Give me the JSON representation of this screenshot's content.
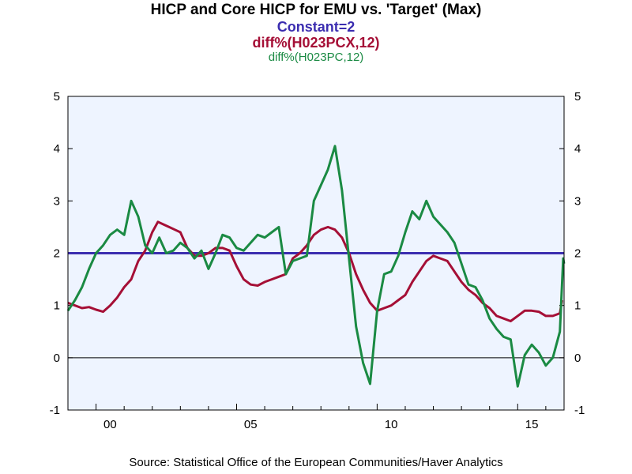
{
  "chart_data": {
    "type": "line",
    "title": "HICP and Core HICP for EMU vs. 'Target' (Max)",
    "xlabel": "",
    "ylabel": "",
    "xlim": [
      1999.0,
      2016.65
    ],
    "ylim": [
      -1,
      5
    ],
    "yticks": [
      -1,
      0,
      1,
      2,
      3,
      4,
      5
    ],
    "xticks": [
      {
        "value": 2000,
        "label": "00"
      },
      {
        "value": 2005,
        "label": "05"
      },
      {
        "value": 2010,
        "label": "10"
      },
      {
        "value": 2015,
        "label": "15"
      }
    ],
    "grid": false,
    "legend": "top-center",
    "series": [
      {
        "name": "Constant=2",
        "color": "#3b2db0",
        "points": [
          [
            1999.0,
            2
          ],
          [
            2016.65,
            2
          ]
        ]
      },
      {
        "name": "diff%(H023PCX,12)",
        "color": "#a50f36",
        "points": [
          [
            1999.0,
            1.05
          ],
          [
            1999.25,
            1.0
          ],
          [
            1999.5,
            0.95
          ],
          [
            1999.75,
            0.97
          ],
          [
            2000.0,
            0.92
          ],
          [
            2000.25,
            0.88
          ],
          [
            2000.5,
            1.0
          ],
          [
            2000.75,
            1.15
          ],
          [
            2001.0,
            1.35
          ],
          [
            2001.25,
            1.5
          ],
          [
            2001.5,
            1.85
          ],
          [
            2001.75,
            2.05
          ],
          [
            2002.0,
            2.4
          ],
          [
            2002.2,
            2.6
          ],
          [
            2002.4,
            2.55
          ],
          [
            2002.6,
            2.5
          ],
          [
            2002.8,
            2.45
          ],
          [
            2003.0,
            2.4
          ],
          [
            2003.25,
            2.1
          ],
          [
            2003.5,
            1.95
          ],
          [
            2003.75,
            1.95
          ],
          [
            2004.0,
            2.0
          ],
          [
            2004.25,
            2.1
          ],
          [
            2004.5,
            2.1
          ],
          [
            2004.75,
            2.05
          ],
          [
            2005.0,
            1.75
          ],
          [
            2005.25,
            1.5
          ],
          [
            2005.5,
            1.4
          ],
          [
            2005.75,
            1.38
          ],
          [
            2006.0,
            1.45
          ],
          [
            2006.25,
            1.5
          ],
          [
            2006.5,
            1.55
          ],
          [
            2006.75,
            1.6
          ],
          [
            2007.0,
            1.9
          ],
          [
            2007.25,
            2.0
          ],
          [
            2007.5,
            2.15
          ],
          [
            2007.75,
            2.35
          ],
          [
            2008.0,
            2.45
          ],
          [
            2008.25,
            2.5
          ],
          [
            2008.5,
            2.45
          ],
          [
            2008.75,
            2.3
          ],
          [
            2009.0,
            2.0
          ],
          [
            2009.25,
            1.6
          ],
          [
            2009.5,
            1.3
          ],
          [
            2009.75,
            1.05
          ],
          [
            2010.0,
            0.9
          ],
          [
            2010.25,
            0.95
          ],
          [
            2010.5,
            1.0
          ],
          [
            2010.75,
            1.1
          ],
          [
            2011.0,
            1.2
          ],
          [
            2011.25,
            1.45
          ],
          [
            2011.5,
            1.65
          ],
          [
            2011.75,
            1.85
          ],
          [
            2012.0,
            1.95
          ],
          [
            2012.25,
            1.9
          ],
          [
            2012.5,
            1.85
          ],
          [
            2012.75,
            1.65
          ],
          [
            2013.0,
            1.45
          ],
          [
            2013.25,
            1.3
          ],
          [
            2013.5,
            1.2
          ],
          [
            2013.75,
            1.05
          ],
          [
            2014.0,
            0.95
          ],
          [
            2014.25,
            0.8
          ],
          [
            2014.5,
            0.75
          ],
          [
            2014.75,
            0.7
          ],
          [
            2015.0,
            0.8
          ],
          [
            2015.25,
            0.9
          ],
          [
            2015.5,
            0.9
          ],
          [
            2015.75,
            0.88
          ],
          [
            2016.0,
            0.8
          ],
          [
            2016.25,
            0.8
          ],
          [
            2016.5,
            0.85
          ],
          [
            2016.58,
            1.1
          ]
        ]
      },
      {
        "name": "diff%(H023PC,12)",
        "color": "#1a8a43",
        "points": [
          [
            1999.0,
            0.9
          ],
          [
            1999.25,
            1.1
          ],
          [
            1999.5,
            1.35
          ],
          [
            1999.75,
            1.7
          ],
          [
            2000.0,
            2.0
          ],
          [
            2000.25,
            2.15
          ],
          [
            2000.5,
            2.35
          ],
          [
            2000.75,
            2.45
          ],
          [
            2001.0,
            2.35
          ],
          [
            2001.25,
            3.0
          ],
          [
            2001.5,
            2.7
          ],
          [
            2001.75,
            2.15
          ],
          [
            2002.0,
            2.0
          ],
          [
            2002.25,
            2.3
          ],
          [
            2002.5,
            2.0
          ],
          [
            2002.75,
            2.05
          ],
          [
            2003.0,
            2.2
          ],
          [
            2003.25,
            2.1
          ],
          [
            2003.5,
            1.9
          ],
          [
            2003.75,
            2.05
          ],
          [
            2004.0,
            1.7
          ],
          [
            2004.25,
            2.0
          ],
          [
            2004.5,
            2.35
          ],
          [
            2004.75,
            2.3
          ],
          [
            2005.0,
            2.1
          ],
          [
            2005.25,
            2.05
          ],
          [
            2005.5,
            2.2
          ],
          [
            2005.75,
            2.35
          ],
          [
            2006.0,
            2.3
          ],
          [
            2006.25,
            2.4
          ],
          [
            2006.5,
            2.5
          ],
          [
            2006.75,
            1.6
          ],
          [
            2007.0,
            1.85
          ],
          [
            2007.25,
            1.9
          ],
          [
            2007.5,
            1.95
          ],
          [
            2007.75,
            3.0
          ],
          [
            2008.0,
            3.3
          ],
          [
            2008.25,
            3.6
          ],
          [
            2008.5,
            4.05
          ],
          [
            2008.75,
            3.2
          ],
          [
            2009.0,
            1.9
          ],
          [
            2009.25,
            0.6
          ],
          [
            2009.5,
            -0.1
          ],
          [
            2009.75,
            -0.5
          ],
          [
            2010.0,
            0.9
          ],
          [
            2010.25,
            1.6
          ],
          [
            2010.5,
            1.65
          ],
          [
            2010.75,
            1.95
          ],
          [
            2011.0,
            2.4
          ],
          [
            2011.25,
            2.8
          ],
          [
            2011.5,
            2.65
          ],
          [
            2011.75,
            3.0
          ],
          [
            2012.0,
            2.7
          ],
          [
            2012.25,
            2.55
          ],
          [
            2012.5,
            2.4
          ],
          [
            2012.75,
            2.2
          ],
          [
            2013.0,
            1.8
          ],
          [
            2013.25,
            1.4
          ],
          [
            2013.5,
            1.35
          ],
          [
            2013.75,
            1.1
          ],
          [
            2014.0,
            0.75
          ],
          [
            2014.25,
            0.55
          ],
          [
            2014.5,
            0.4
          ],
          [
            2014.75,
            0.35
          ],
          [
            2015.0,
            -0.55
          ],
          [
            2015.25,
            0.05
          ],
          [
            2015.5,
            0.25
          ],
          [
            2015.75,
            0.1
          ],
          [
            2016.0,
            -0.15
          ],
          [
            2016.25,
            0.0
          ],
          [
            2016.5,
            0.5
          ],
          [
            2016.62,
            1.9
          ],
          [
            2016.65,
            1.8
          ]
        ]
      }
    ],
    "annotations": [
      "Source:  Statistical Office of the European Communities/Haver Analytics"
    ]
  },
  "header": {
    "title": "HICP and Core HICP for EMU vs. 'Target' (Max)",
    "line2": "Constant=2",
    "line3": "diff%(H023PCX,12)",
    "line4": "diff%(H023PC,12)"
  },
  "footer": {
    "source": "Source:  Statistical Office of the European Communities/Haver Analytics"
  },
  "colors": {
    "plot_background": "#eef4ff",
    "zero_line": "#000000",
    "constant": "#3b2db0",
    "core": "#a50f36",
    "headline": "#1a8a43"
  }
}
